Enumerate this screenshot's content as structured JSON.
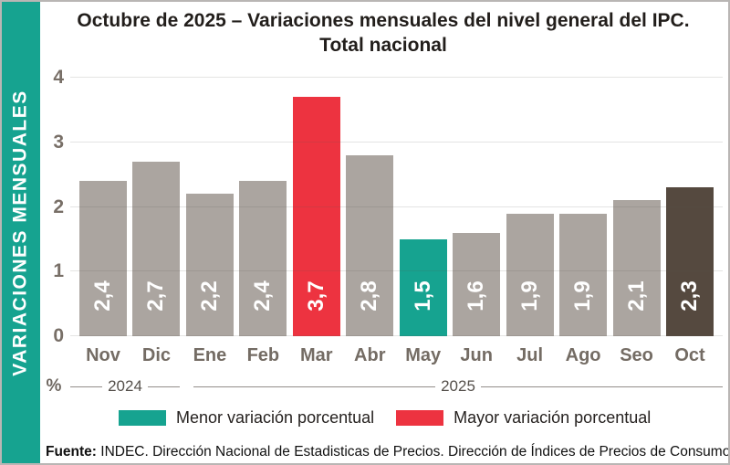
{
  "title": {
    "line1": "Octubre de 2025 – Variaciones mensuales del nivel general del IPC.",
    "line2": "Total nacional"
  },
  "y_axis_label": "VARIACIONES MENSUALES",
  "percent_symbol": "%",
  "chart_data": {
    "type": "bar",
    "categories": [
      "Nov",
      "Dic",
      "Ene",
      "Feb",
      "Mar",
      "Abr",
      "May",
      "Jun",
      "Jul",
      "Ago",
      "Seo",
      "Oct"
    ],
    "values": [
      2.4,
      2.7,
      2.2,
      2.4,
      3.7,
      2.8,
      1.5,
      1.6,
      1.9,
      1.9,
      2.1,
      2.3
    ],
    "value_labels": [
      "2,4",
      "2,7",
      "2,2",
      "2,4",
      "3,7",
      "2,8",
      "1,5",
      "1,6",
      "1,9",
      "1,9",
      "2,1",
      "2,3"
    ],
    "bar_colors": [
      "#aba5a0",
      "#aba5a0",
      "#aba5a0",
      "#aba5a0",
      "#ed3340",
      "#aba5a0",
      "#16a390",
      "#aba5a0",
      "#aba5a0",
      "#aba5a0",
      "#aba5a0",
      "#55493f"
    ],
    "title": "Octubre de 2025 – Variaciones mensuales del nivel general del IPC. Total nacional",
    "xlabel": "",
    "ylabel": "VARIACIONES MENSUALES",
    "ylim": [
      0,
      4
    ],
    "yticks": [
      "0",
      "1",
      "2",
      "3",
      "4"
    ],
    "grid": true,
    "legend_position": "bottom",
    "year_groups": [
      {
        "label": "2024",
        "span": 2
      },
      {
        "label": "2025",
        "span": 10
      }
    ]
  },
  "colors": {
    "band_teal": "#16a390",
    "min_teal": "#16a390",
    "max_red": "#ed3340",
    "normal_gray": "#aba5a0",
    "latest_dark": "#55493f"
  },
  "legend": [
    {
      "label": "Menor variación porcentual",
      "color": "#16a390"
    },
    {
      "label": "Mayor variación porcentual",
      "color": "#ed3340"
    }
  ],
  "footer": {
    "label": "Fuente:",
    "text": " INDEC. Dirección Nacional de Estadisticas de Precios. Dirección de Índices de Precios de Consumo"
  }
}
